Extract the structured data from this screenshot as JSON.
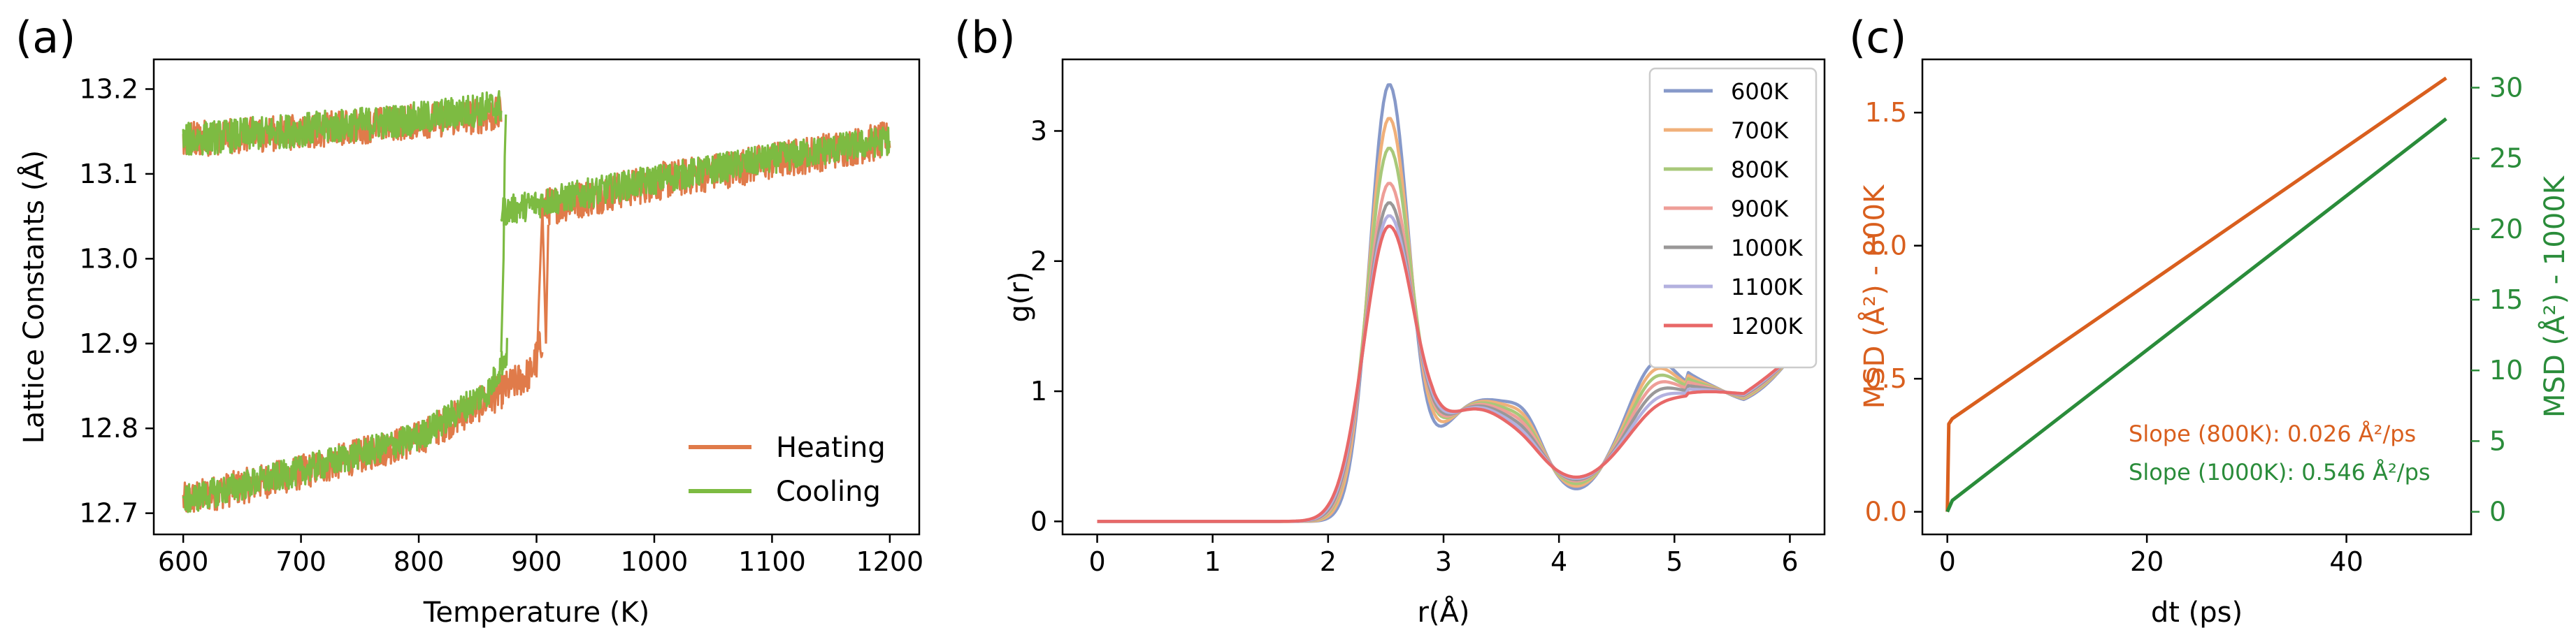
{
  "chart_data": [
    {
      "panel": "(a)",
      "type": "line",
      "xlabel": "Temperature (K)",
      "ylabel": "Lattice Constants (Å)",
      "xlim": [
        575,
        1225
      ],
      "ylim": [
        12.675,
        13.235
      ],
      "xticks": [
        600,
        700,
        800,
        900,
        1000,
        1100,
        1200
      ],
      "yticks": [
        12.7,
        12.8,
        12.9,
        13.0,
        13.1,
        13.2
      ],
      "legend_loc": "lower right",
      "series": [
        {
          "name": "Heating",
          "color": "#e07b4a",
          "segments": [
            {
              "x": [
                600,
                700,
                800,
                860,
                895,
                905
              ],
              "y": [
                12.715,
                12.748,
                12.788,
                12.835,
                12.865,
                12.905
              ]
            },
            {
              "x": [
                905,
                1000,
                1100,
                1200
              ],
              "y": [
                13.06,
                13.09,
                13.115,
                13.14
              ]
            },
            {
              "x": [
                600,
                700,
                800,
                870
              ],
              "y": [
                13.14,
                13.15,
                13.162,
                13.17
              ]
            }
          ],
          "noise": [
            0.026,
            0.028
          ]
        },
        {
          "name": "Cooling",
          "color": "#7dbb42",
          "segments": [
            {
              "x": [
                1200,
                1100,
                1000,
                900,
                870
              ],
              "y": [
                13.14,
                13.118,
                13.093,
                13.065,
                13.055
              ]
            },
            {
              "x": [
                870,
                800,
                700,
                600
              ],
              "y": [
                13.18,
                13.165,
                13.152,
                13.14
              ]
            },
            {
              "x": [
                875,
                860,
                800,
                700,
                600
              ],
              "y": [
                12.89,
                12.845,
                12.79,
                12.75,
                12.715
              ]
            }
          ],
          "noise": [
            0.022,
            0.025
          ]
        }
      ]
    },
    {
      "panel": "(b)",
      "type": "line",
      "xlabel": "r(Å)",
      "ylabel": "g(r)",
      "xlim": [
        -0.3,
        6.3
      ],
      "ylim": [
        -0.1,
        3.55
      ],
      "xticks": [
        0,
        1,
        2,
        3,
        4,
        5,
        6
      ],
      "yticks": [
        0,
        1,
        2,
        3
      ],
      "legend_loc": "upper right",
      "series": [
        {
          "name": "600K",
          "color": "#8799c9",
          "peak": 3.36,
          "width": 0.24,
          "valley": 0.25
        },
        {
          "name": "700K",
          "color": "#f0b07a",
          "peak": 3.1,
          "width": 0.255,
          "valley": 0.27
        },
        {
          "name": "800K",
          "color": "#a8c87a",
          "peak": 2.87,
          "width": 0.27,
          "valley": 0.29
        },
        {
          "name": "900K",
          "color": "#ee9e98",
          "peak": 2.6,
          "width": 0.28,
          "valley": 0.31
        },
        {
          "name": "1000K",
          "color": "#9a9898",
          "peak": 2.45,
          "width": 0.29,
          "valley": 0.32
        },
        {
          "name": "1100K",
          "color": "#b3b1df",
          "peak": 2.35,
          "width": 0.3,
          "valley": 0.33
        },
        {
          "name": "1200K",
          "color": "#e86868",
          "peak": 2.27,
          "width": 0.31,
          "valley": 0.34
        }
      ]
    },
    {
      "panel": "(c)",
      "type": "line",
      "xlabel": "dt (ps)",
      "ylabel_left": "MSD (Å²) - 800K",
      "ylabel_right": "MSD (Å²) - 1000K",
      "xlim": [
        -2.5,
        52.5
      ],
      "ylim_left": [
        -0.085,
        1.7
      ],
      "ylim_right": [
        -1.6,
        32
      ],
      "xticks": [
        0,
        20,
        40
      ],
      "yticks_left": [
        0.0,
        0.5,
        1.0,
        1.5
      ],
      "yticks_right": [
        0,
        5,
        10,
        15,
        20,
        25,
        30
      ],
      "annotations": [
        {
          "text": "Slope (800K): 0.026 Å²/ps",
          "color": "#d95f1e"
        },
        {
          "text": "Slope (1000K): 0.546 Å²/ps",
          "color": "#2a8c3a"
        }
      ],
      "series": [
        {
          "name": "800K",
          "axis": "left",
          "color": "#d95f1e",
          "x": [
            0,
            0.15,
            0.5,
            50
          ],
          "y": [
            0.0,
            0.33,
            0.35,
            1.63
          ]
        },
        {
          "name": "1000K",
          "axis": "right",
          "color": "#2a8c3a",
          "x": [
            0,
            0.5,
            50
          ],
          "y": [
            0.0,
            0.8,
            27.8
          ]
        }
      ]
    }
  ]
}
